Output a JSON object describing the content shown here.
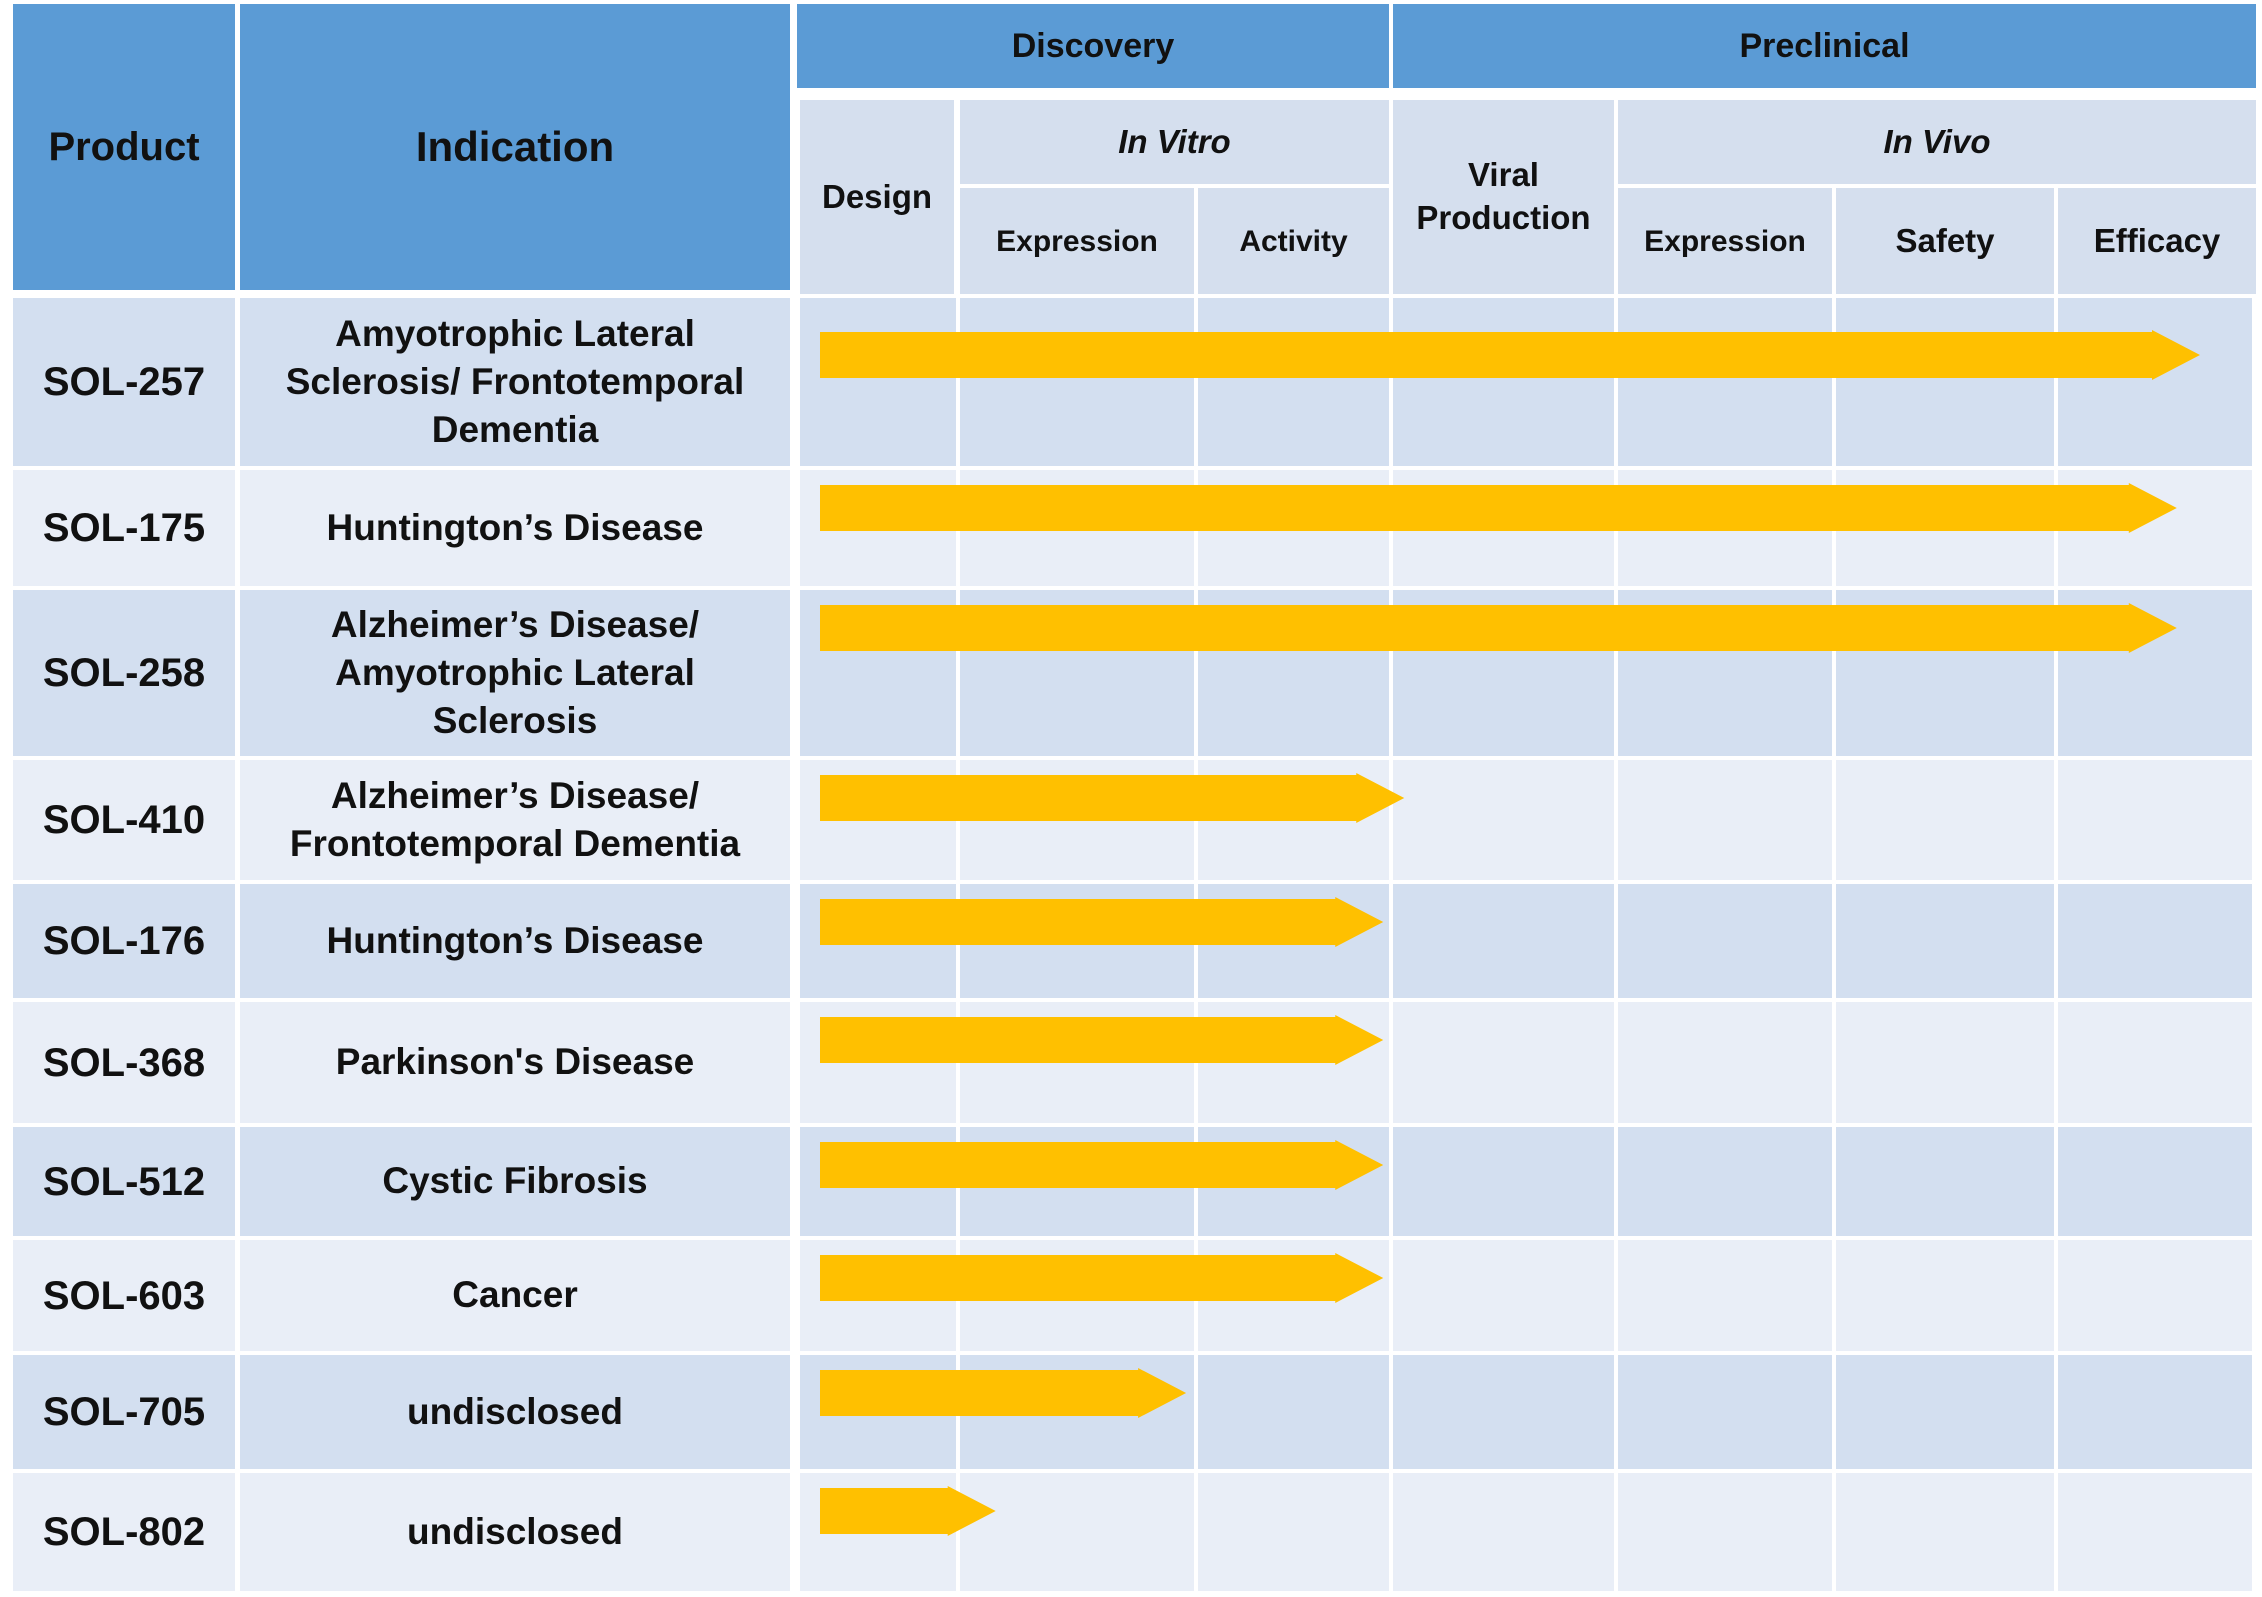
{
  "header": {
    "product": "Product",
    "indication": "Indication",
    "discovery": "Discovery",
    "preclinical": "Preclinical",
    "design": "Design",
    "in_vitro": "In Vitro",
    "viral_production": "Viral Production",
    "in_vivo": "In Vivo",
    "expression_vitro": "Expression",
    "activity": "Activity",
    "expression_vivo": "Expression",
    "safety": "Safety",
    "efficacy": "Efficacy"
  },
  "colors": {
    "header_blue": "#5b9bd5",
    "header_light": "#d5dfee",
    "row_dark": "#d3dff0",
    "row_light": "#e9eef7",
    "arrow": "#ffc000"
  },
  "chart_data": {
    "type": "table",
    "stage_columns": [
      "Design",
      "Expression",
      "Activity",
      "Viral Production",
      "Expression",
      "Safety",
      "Efficacy"
    ],
    "rows": [
      {
        "product": "SOL-257",
        "indication": "Amyotrophic Lateral Sclerosis/ Frontotemporal Dementia",
        "progress_stages": 7.0
      },
      {
        "product": "SOL-175",
        "indication": "Huntington’s Disease",
        "progress_stages": 6.6
      },
      {
        "product": "SOL-258",
        "indication": "Alzheimer’s Disease/ Amyotrophic Lateral Sclerosis",
        "progress_stages": 6.6
      },
      {
        "product": "SOL-410",
        "indication": "Alzheimer’s Disease/ Frontotemporal Dementia",
        "progress_stages": 3.05
      },
      {
        "product": "SOL-176",
        "indication": "Huntington’s Disease",
        "progress_stages": 2.95
      },
      {
        "product": "SOL-368",
        "indication": "Parkinson's Disease",
        "progress_stages": 2.95
      },
      {
        "product": "SOL-512",
        "indication": "Cystic Fibrosis",
        "progress_stages": 2.95
      },
      {
        "product": "SOL-603",
        "indication": "Cancer",
        "progress_stages": 2.95
      },
      {
        "product": "SOL-705",
        "indication": "undisclosed",
        "progress_stages": 1.95
      },
      {
        "product": "SOL-802",
        "indication": "undisclosed",
        "progress_stages": 1.15
      }
    ]
  }
}
